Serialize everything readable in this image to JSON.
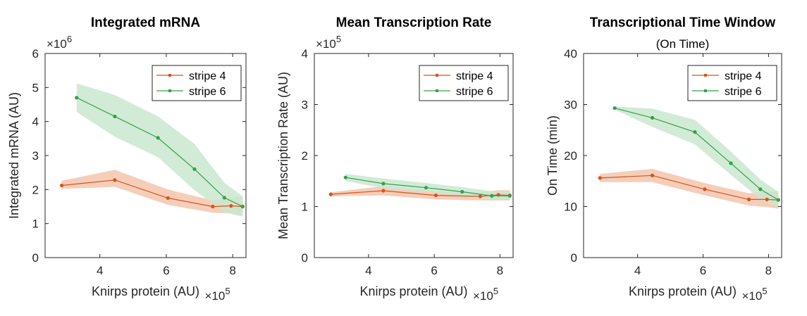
{
  "colors": {
    "stripe4": "#d95319",
    "stripe6": "#33a04a",
    "band4": "#f3c5ad",
    "band6": "#c9e8cf"
  },
  "chart_data": [
    {
      "type": "line",
      "title": "Integrated mRNA",
      "subtitle": "",
      "xlabel": "Knirps protein (AU)",
      "ylabel": "Integrated mRNA (AU)",
      "x_multiplier": "×10",
      "x_exponent": "5",
      "y_multiplier": "×10",
      "y_exponent": "6",
      "xlim": [
        2.35,
        8.4
      ],
      "ylim": [
        0,
        6
      ],
      "xticks": [
        4,
        6,
        8
      ],
      "yticks": [
        0,
        1,
        2,
        3,
        4,
        5,
        6
      ],
      "legend": "top-right",
      "series": [
        {
          "name": "stripe 4",
          "color": "#d95319",
          "x": [
            2.85,
            4.45,
            6.05,
            7.4,
            7.95,
            8.3
          ],
          "y": [
            2.12,
            2.28,
            1.75,
            1.5,
            1.52,
            1.5
          ],
          "lower": [
            2.02,
            2.08,
            1.55,
            1.32,
            1.3,
            1.25
          ],
          "upper": [
            2.26,
            2.58,
            2.0,
            1.68,
            1.76,
            1.8
          ]
        },
        {
          "name": "stripe 6",
          "color": "#33a04a",
          "x": [
            3.3,
            4.45,
            5.75,
            6.85,
            7.75,
            8.3
          ],
          "y": [
            4.7,
            4.15,
            3.52,
            2.6,
            1.76,
            1.5
          ],
          "lower": [
            4.28,
            3.55,
            2.95,
            1.98,
            1.33,
            1.2
          ],
          "upper": [
            5.12,
            4.78,
            4.15,
            3.34,
            2.2,
            1.8
          ]
        }
      ]
    },
    {
      "type": "line",
      "title": "Mean Transcription Rate",
      "subtitle": "",
      "xlabel": "Knirps protein (AU)",
      "ylabel": "Mean Transcription Rate (AU)",
      "x_multiplier": "×10",
      "x_exponent": "5",
      "y_multiplier": "×10",
      "y_exponent": "5",
      "xlim": [
        2.35,
        8.4
      ],
      "ylim": [
        0,
        4
      ],
      "xticks": [
        4,
        6,
        8
      ],
      "yticks": [
        0,
        1,
        2,
        3,
        4
      ],
      "legend": "top-right",
      "series": [
        {
          "name": "stripe 4",
          "color": "#d95319",
          "x": [
            2.85,
            4.45,
            6.05,
            7.4,
            7.95,
            8.3
          ],
          "y": [
            1.24,
            1.31,
            1.22,
            1.2,
            1.23,
            1.22
          ],
          "lower": [
            1.2,
            1.22,
            1.14,
            1.12,
            1.12,
            1.12
          ],
          "upper": [
            1.28,
            1.4,
            1.3,
            1.28,
            1.32,
            1.32
          ]
        },
        {
          "name": "stripe 6",
          "color": "#33a04a",
          "x": [
            3.3,
            4.45,
            5.75,
            6.85,
            7.75,
            8.3
          ],
          "y": [
            1.57,
            1.45,
            1.37,
            1.29,
            1.21,
            1.21
          ],
          "lower": [
            1.5,
            1.36,
            1.29,
            1.2,
            1.14,
            1.14
          ],
          "upper": [
            1.64,
            1.55,
            1.46,
            1.38,
            1.3,
            1.3
          ]
        }
      ]
    },
    {
      "type": "line",
      "title": "Transcriptional Time Window",
      "subtitle": "(On Time)",
      "xlabel": "Knirps protein (AU)",
      "ylabel": "On Time (min)",
      "x_multiplier": "×10",
      "x_exponent": "5",
      "y_multiplier": "",
      "y_exponent": "",
      "xlim": [
        2.35,
        8.4
      ],
      "ylim": [
        0,
        40
      ],
      "xticks": [
        4,
        6,
        8
      ],
      "yticks": [
        0,
        10,
        20,
        30,
        40
      ],
      "legend": "top-right",
      "series": [
        {
          "name": "stripe 4",
          "color": "#d95319",
          "x": [
            2.85,
            4.45,
            6.05,
            7.4,
            7.95,
            8.3
          ],
          "y": [
            15.6,
            16.1,
            13.4,
            11.4,
            11.4,
            11.3
          ],
          "lower": [
            14.8,
            14.8,
            12.2,
            10.2,
            9.9,
            9.6
          ],
          "upper": [
            16.4,
            17.4,
            14.6,
            12.6,
            12.9,
            13.0
          ]
        },
        {
          "name": "stripe 6",
          "color": "#33a04a",
          "x": [
            3.3,
            4.45,
            5.75,
            6.85,
            7.75,
            8.3
          ],
          "y": [
            29.3,
            27.4,
            24.6,
            18.5,
            13.4,
            11.3
          ],
          "lower": [
            29.0,
            25.6,
            22.2,
            16.2,
            11.5,
            9.8
          ],
          "upper": [
            29.6,
            29.2,
            27.0,
            20.8,
            15.3,
            12.9
          ]
        }
      ]
    }
  ]
}
